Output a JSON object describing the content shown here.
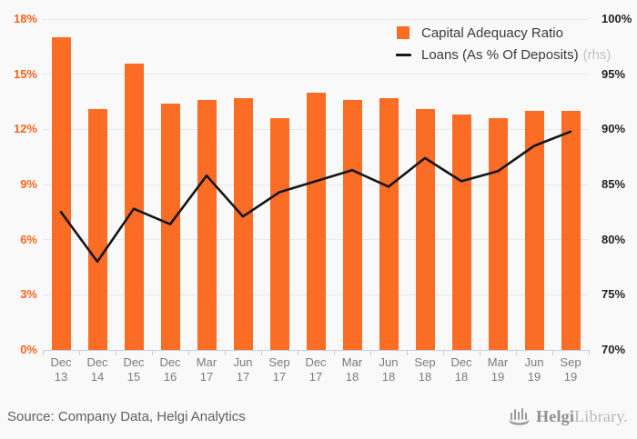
{
  "chart_data": {
    "type": "combo-bar-line",
    "categories": [
      "Dec 13",
      "Dec 14",
      "Dec 15",
      "Dec 16",
      "Mar 17",
      "Jun 17",
      "Sep 17",
      "Dec 17",
      "Mar 18",
      "Jun 18",
      "Sep 18",
      "Dec 18",
      "Mar 19",
      "Jun 19",
      "Sep 19"
    ],
    "series": [
      {
        "name": "Capital Adequacy Ratio",
        "type": "bar",
        "axis": "left",
        "values": [
          17.0,
          13.1,
          15.6,
          13.4,
          13.6,
          13.7,
          12.6,
          14.0,
          13.6,
          13.7,
          13.1,
          12.8,
          12.6,
          13.0,
          13.0
        ]
      },
      {
        "name": "Loans (As % Of Deposits)",
        "axis_note": "(rhs)",
        "type": "line",
        "axis": "right",
        "values": [
          82.5,
          78.0,
          82.8,
          81.4,
          85.8,
          82.1,
          84.3,
          85.3,
          86.3,
          84.8,
          87.4,
          85.3,
          86.2,
          88.5,
          89.8
        ]
      }
    ],
    "left_axis": {
      "min": 0,
      "max": 18,
      "step": 3,
      "suffix": "%"
    },
    "right_axis": {
      "min": 70,
      "max": 100,
      "step": 5,
      "suffix": "%"
    },
    "grid": true,
    "legend_position": "top-right"
  },
  "colors": {
    "background": "#f9f9f9",
    "bar": "#fb6c25",
    "line": "#161616",
    "left_axis_label": "#f8641e",
    "right_axis_label": "#1f1f1f",
    "x_axis_label": "#7b7b7b",
    "gridline": "#eaeaea",
    "axis_line": "#c7cde9",
    "legend_text": "#3a3a3a",
    "legend_note": "#c2c2c2",
    "source_text": "#606060",
    "brand_dark": "#8f8f8f",
    "brand_light": "#b9b9b9",
    "brand_icon": "#9a9a9a"
  },
  "footer": {
    "source": "Source: Company Data, Helgi Analytics",
    "brand_bold": "Helgi",
    "brand_light": "Library."
  }
}
